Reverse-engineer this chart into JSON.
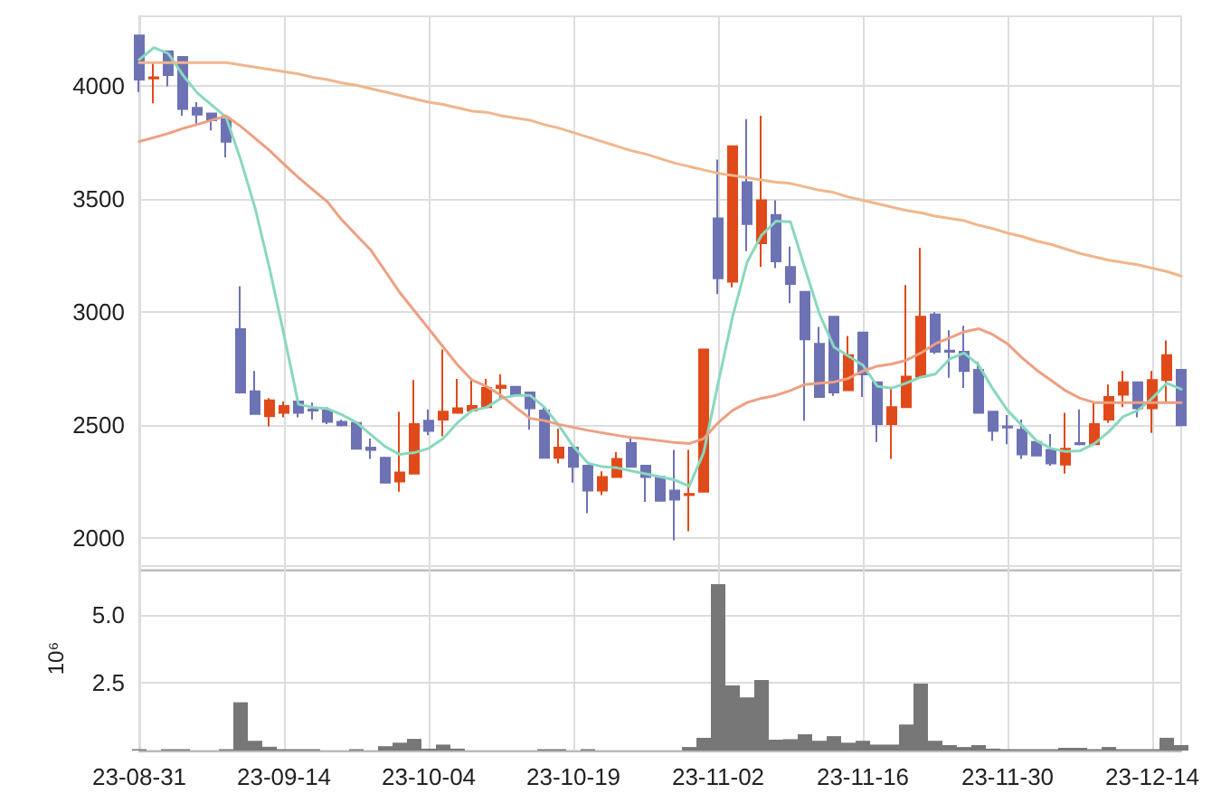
{
  "chart_data": [
    {
      "type": "candlestick",
      "categories": [
        null,
        null,
        null,
        null,
        null,
        null,
        null,
        null,
        null,
        null,
        null,
        null,
        null,
        null,
        null,
        null,
        null,
        null,
        null,
        null,
        null,
        null,
        null,
        null,
        null,
        null,
        null,
        null,
        null,
        null,
        null,
        null,
        null,
        null,
        null,
        null,
        null,
        null,
        null,
        null,
        null,
        null,
        null,
        null,
        null,
        null,
        null,
        null,
        null,
        null,
        null,
        null,
        null,
        null,
        null,
        null,
        null,
        null,
        null,
        null,
        null,
        null,
        null,
        null,
        null,
        null,
        null,
        null,
        null,
        null,
        null,
        null,
        null
      ],
      "ohlc": [
        [
          4225,
          4225,
          3975,
          4030
        ],
        [
          4035,
          4105,
          3925,
          4040
        ],
        [
          4155,
          4155,
          4000,
          4050
        ],
        [
          4130,
          4130,
          3870,
          3900
        ],
        [
          3905,
          3930,
          3830,
          3875
        ],
        [
          3880,
          3880,
          3805,
          3850
        ],
        [
          3855,
          3855,
          3685,
          3755
        ],
        [
          2925,
          3115,
          2640,
          2645
        ],
        [
          2650,
          2740,
          2550,
          2550
        ],
        [
          2540,
          2620,
          2495,
          2610
        ],
        [
          2555,
          2605,
          2535,
          2585
        ],
        [
          2605,
          2605,
          2535,
          2555
        ],
        [
          2570,
          2600,
          2525,
          2565
        ],
        [
          2565,
          2580,
          2505,
          2515
        ],
        [
          2515,
          2525,
          2495,
          2500
        ],
        [
          2510,
          2510,
          2395,
          2395
        ],
        [
          2400,
          2440,
          2350,
          2390
        ],
        [
          2355,
          2360,
          2245,
          2245
        ],
        [
          2250,
          2560,
          2205,
          2290
        ],
        [
          2285,
          2700,
          2285,
          2505
        ],
        [
          2520,
          2570,
          2455,
          2475
        ],
        [
          2525,
          2835,
          2450,
          2560
        ],
        [
          2555,
          2705,
          2555,
          2575
        ],
        [
          2565,
          2705,
          2565,
          2585
        ],
        [
          2580,
          2705,
          2580,
          2665
        ],
        [
          2665,
          2725,
          2620,
          2675
        ],
        [
          2670,
          2670,
          2635,
          2635
        ],
        [
          2645,
          2645,
          2480,
          2575
        ],
        [
          2565,
          2580,
          2355,
          2355
        ],
        [
          2355,
          2485,
          2330,
          2400
        ],
        [
          2400,
          2400,
          2245,
          2315
        ],
        [
          2320,
          2320,
          2110,
          2210
        ],
        [
          2210,
          2295,
          2190,
          2270
        ],
        [
          2270,
          2380,
          2270,
          2350
        ],
        [
          2420,
          2450,
          2315,
          2315
        ],
        [
          2320,
          2320,
          2160,
          2270
        ],
        [
          2270,
          2270,
          2165,
          2165
        ],
        [
          2210,
          2390,
          1990,
          2170
        ],
        [
          2190,
          2390,
          2030,
          2195
        ],
        [
          2205,
          2835,
          2205,
          2835
        ],
        [
          3415,
          3675,
          3080,
          3150
        ],
        [
          3135,
          3735,
          3110,
          3735
        ],
        [
          3575,
          3855,
          3270,
          3390
        ],
        [
          3305,
          3870,
          3200,
          3495
        ],
        [
          3430,
          3495,
          3195,
          3225
        ],
        [
          3200,
          3290,
          3040,
          3125
        ],
        [
          3090,
          3090,
          2520,
          2880
        ],
        [
          2860,
          2935,
          2625,
          2625
        ],
        [
          2980,
          2980,
          2630,
          2645
        ],
        [
          2655,
          2895,
          2655,
          2810
        ],
        [
          2910,
          2910,
          2625,
          2725
        ],
        [
          2690,
          2690,
          2425,
          2505
        ],
        [
          2505,
          2670,
          2350,
          2580
        ],
        [
          2580,
          3120,
          2580,
          2715
        ],
        [
          2715,
          3285,
          2715,
          2980
        ],
        [
          2990,
          3000,
          2815,
          2825
        ],
        [
          2830,
          2920,
          2710,
          2825
        ],
        [
          2825,
          2940,
          2665,
          2740
        ],
        [
          2745,
          2780,
          2555,
          2555
        ],
        [
          2560,
          2560,
          2430,
          2475
        ],
        [
          2495,
          2545,
          2415,
          2490
        ],
        [
          2480,
          2525,
          2350,
          2370
        ],
        [
          2425,
          2425,
          2365,
          2365
        ],
        [
          2390,
          2460,
          2320,
          2330
        ],
        [
          2325,
          2555,
          2285,
          2395
        ],
        [
          2420,
          2570,
          2410,
          2415
        ],
        [
          2415,
          2605,
          2415,
          2505
        ],
        [
          2525,
          2680,
          2510,
          2625
        ],
        [
          2635,
          2740,
          2580,
          2690
        ],
        [
          2690,
          2690,
          2535,
          2575
        ],
        [
          2575,
          2740,
          2465,
          2700
        ],
        [
          2700,
          2875,
          2605,
          2810
        ],
        [
          2745,
          2745,
          2500,
          2500
        ]
      ],
      "colors": [
        "#6d72b5",
        "#e04a1a",
        "#6d72b5",
        "#6d72b5",
        "#6d72b5",
        "#6d72b5",
        "#6d72b5",
        "#6d72b5",
        "#6d72b5",
        "#e04a1a",
        "#e04a1a",
        "#6d72b5",
        "#6d72b5",
        "#6d72b5",
        "#6d72b5",
        "#6d72b5",
        "#6d72b5",
        "#6d72b5",
        "#e04a1a",
        "#e04a1a",
        "#6d72b5",
        "#e04a1a",
        "#e04a1a",
        "#e04a1a",
        "#e04a1a",
        "#e04a1a",
        "#6d72b5",
        "#6d72b5",
        "#6d72b5",
        "#e04a1a",
        "#6d72b5",
        "#6d72b5",
        "#e04a1a",
        "#e04a1a",
        "#6d72b5",
        "#6d72b5",
        "#6d72b5",
        "#6d72b5",
        "#e04a1a",
        "#e04a1a",
        "#6d72b5",
        "#e04a1a",
        "#6d72b5",
        "#e04a1a",
        "#6d72b5",
        "#6d72b5",
        "#6d72b5",
        "#6d72b5",
        "#6d72b5",
        "#e04a1a",
        "#6d72b5",
        "#6d72b5",
        "#e04a1a",
        "#e04a1a",
        "#e04a1a",
        "#6d72b5",
        "#6d72b5",
        "#6d72b5",
        "#6d72b5",
        "#6d72b5",
        "#6d72b5",
        "#6d72b5",
        "#6d72b5",
        "#6d72b5",
        "#e04a1a",
        "#6d72b5",
        "#e04a1a",
        "#e04a1a",
        "#e04a1a",
        "#6d72b5",
        "#e04a1a",
        "#e04a1a",
        "#6d72b5"
      ],
      "series": [
        {
          "type": "line",
          "color": "#88d8be",
          "values": [
            4118,
            4171,
            4145,
            4051,
            3971,
            3917,
            3863,
            3676,
            3462,
            3194,
            2900,
            2592,
            2579,
            2573,
            2546,
            2512,
            2458,
            2405,
            2370,
            2378,
            2397,
            2440,
            2512,
            2565,
            2579,
            2619,
            2632,
            2632,
            2579,
            2498,
            2405,
            2332,
            2316,
            2311,
            2297,
            2284,
            2271,
            2257,
            2230,
            2378,
            2686,
            2980,
            3221,
            3341,
            3403,
            3400,
            3194,
            2993,
            2846,
            2806,
            2766,
            2672,
            2664,
            2686,
            2712,
            2726,
            2793,
            2819,
            2766,
            2659,
            2565,
            2498,
            2431,
            2397,
            2383,
            2386,
            2418,
            2471,
            2538,
            2565,
            2619,
            2686,
            2659
          ]
        },
        {
          "type": "line",
          "color": "#ee9f80",
          "values": [
            3756,
            3773,
            3791,
            3813,
            3831,
            3850,
            3869,
            3823,
            3770,
            3716,
            3655,
            3596,
            3542,
            3489,
            3408,
            3341,
            3275,
            3181,
            3087,
            3007,
            2927,
            2846,
            2766,
            2699,
            2672,
            2632,
            2579,
            2530,
            2520,
            2503,
            2490,
            2477,
            2466,
            2455,
            2445,
            2439,
            2431,
            2423,
            2418,
            2440,
            2511,
            2565,
            2600,
            2619,
            2632,
            2653,
            2680,
            2686,
            2691,
            2707,
            2739,
            2761,
            2771,
            2787,
            2819,
            2860,
            2886,
            2913,
            2927,
            2900,
            2860,
            2798,
            2744,
            2699,
            2653,
            2619,
            2600,
            2600,
            2600,
            2600,
            2600,
            2600,
            2600
          ]
        },
        {
          "type": "line",
          "color": "#f0b68c",
          "values": [
            4105,
            4105,
            4105,
            4105,
            4105,
            4105,
            4105,
            4095,
            4085,
            4075,
            4065,
            4055,
            4040,
            4030,
            4015,
            4005,
            3990,
            3975,
            3960,
            3945,
            3930,
            3920,
            3905,
            3890,
            3885,
            3870,
            3860,
            3850,
            3830,
            3815,
            3795,
            3775,
            3755,
            3735,
            3715,
            3700,
            3680,
            3660,
            3645,
            3630,
            3615,
            3605,
            3595,
            3585,
            3575,
            3570,
            3555,
            3540,
            3530,
            3510,
            3495,
            3480,
            3465,
            3450,
            3440,
            3425,
            3415,
            3405,
            3385,
            3370,
            3350,
            3335,
            3315,
            3300,
            3280,
            3260,
            3245,
            3230,
            3220,
            3210,
            3195,
            3180,
            3160
          ]
        }
      ],
      "ylim": [
        1860,
        4310
      ],
      "yticks": [
        2000,
        2500,
        3000,
        3500,
        4000
      ],
      "grid": true,
      "marker": "none",
      "tick_labels": "y"
    },
    {
      "type": "bar",
      "categories": [
        "23-08-31",
        null,
        null,
        null,
        null,
        null,
        null,
        null,
        null,
        null,
        "23-09-14",
        null,
        null,
        null,
        null,
        null,
        null,
        null,
        null,
        null,
        "23-10-04",
        null,
        null,
        null,
        null,
        null,
        null,
        null,
        null,
        null,
        "23-10-19",
        null,
        null,
        null,
        null,
        null,
        null,
        null,
        null,
        null,
        "23-11-02",
        null,
        null,
        null,
        null,
        null,
        null,
        null,
        null,
        null,
        "23-11-16",
        null,
        null,
        null,
        null,
        null,
        null,
        null,
        null,
        null,
        "23-11-30",
        null,
        null,
        null,
        null,
        null,
        null,
        null,
        null,
        null,
        "23-12-14",
        null,
        null
      ],
      "values": [
        0.05,
        0,
        0.05,
        0.05,
        0,
        0,
        0.05,
        1.78,
        0.36,
        0.14,
        0.05,
        0.05,
        0.05,
        0,
        0,
        0.05,
        0,
        0.16,
        0.29,
        0.43,
        0.07,
        0.22,
        0.07,
        0,
        0,
        0,
        0,
        0,
        0.05,
        0.05,
        0,
        0.05,
        0,
        0,
        0,
        0,
        0,
        0,
        0.13,
        0.47,
        6.13,
        2.4,
        1.96,
        2.6,
        0.4,
        0.42,
        0.6,
        0.36,
        0.53,
        0.29,
        0.36,
        0.22,
        0.22,
        0.96,
        2.47,
        0.36,
        0.2,
        0.13,
        0.2,
        0.07,
        0.05,
        0.05,
        0.05,
        0.05,
        0.1,
        0.1,
        0.05,
        0.13,
        0.05,
        0.05,
        0.05,
        0.47,
        0.2
      ],
      "color": "#777777",
      "ylabel": "10⁶",
      "ylim": [
        0,
        6.8
      ],
      "yticks": [
        2.5,
        {
          "value": 5,
          "label": "5.0"
        }
      ],
      "grid": true
    }
  ]
}
